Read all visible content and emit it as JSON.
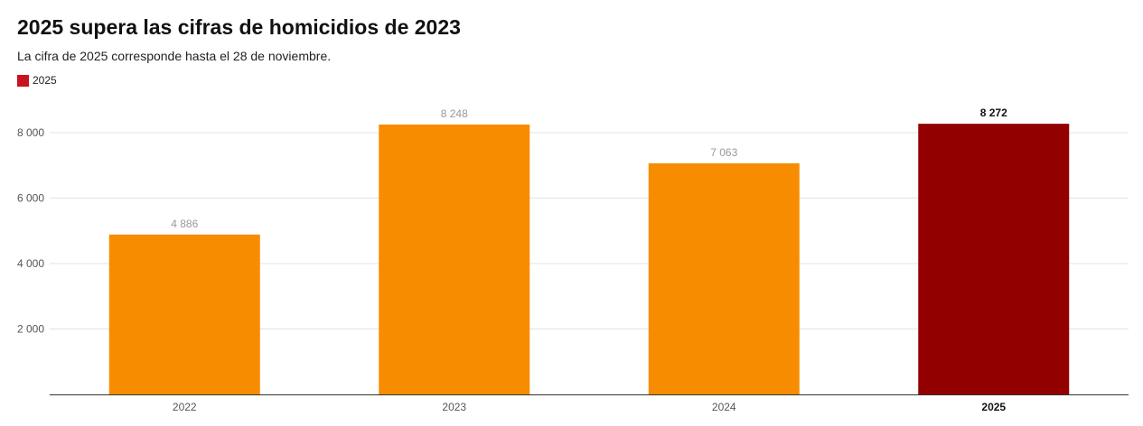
{
  "chart_data": {
    "type": "bar",
    "title": "2025 supera las cifras de homicidios de 2023",
    "subtitle": "La cifra de 2025 corresponde hasta el 28 de noviembre.",
    "legend": {
      "placement": "top-left",
      "entries": [
        {
          "label": "2025",
          "color": "#c8141e"
        }
      ]
    },
    "categories": [
      "2022",
      "2023",
      "2024",
      "2025"
    ],
    "values": [
      4886,
      8248,
      7063,
      8272
    ],
    "value_labels": [
      "4 886",
      "8 248",
      "7 063",
      "8 272"
    ],
    "highlight_index": 3,
    "colors": {
      "default_bar": "#f78c00",
      "highlight_bar": "#930000",
      "value_label": "#999999",
      "highlight_label": "#111111",
      "axis_label": "#555555",
      "gridline": "#e3e3e3",
      "baseline": "#333333"
    },
    "yticks": [
      2000,
      4000,
      6000,
      8000
    ],
    "ytick_labels": [
      "2 000",
      "4 000",
      "6 000",
      "8 000"
    ],
    "ylim": [
      0,
      8600
    ],
    "xlabel": "",
    "ylabel": "",
    "grid": true
  }
}
